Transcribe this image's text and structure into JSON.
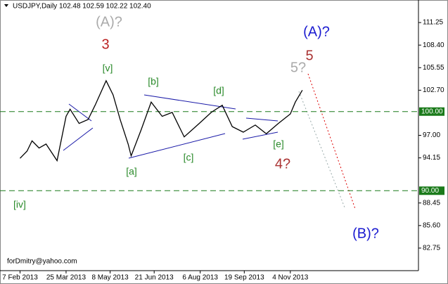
{
  "chart_data": {
    "type": "line",
    "title": "USDJPY,Daily  102.48 102.59 102.22 102.40",
    "watermark": "forDmitry@yahoo.com",
    "x": [
      "2013-02-07",
      "2013-02-14",
      "2013-02-19",
      "2013-02-26",
      "2013-03-05",
      "2013-03-16",
      "2013-03-25",
      "2013-03-29",
      "2013-04-07",
      "2013-04-16",
      "2013-04-23",
      "2013-05-04",
      "2013-05-11",
      "2013-05-18",
      "2013-05-26",
      "2013-05-29",
      "2013-06-08",
      "2013-06-18",
      "2013-06-29",
      "2013-07-09",
      "2013-07-21",
      "2013-08-05",
      "2013-08-17",
      "2013-08-28",
      "2013-09-07",
      "2013-09-18",
      "2013-09-30",
      "2013-10-11",
      "2013-10-23",
      "2013-11-04",
      "2013-11-09",
      "2013-11-16"
    ],
    "series": [
      {
        "name": "USDJPY",
        "color": "#000000",
        "values": [
          94.1,
          95.0,
          96.3,
          95.4,
          95.9,
          93.8,
          99.4,
          100.3,
          98.5,
          99.0,
          100.8,
          103.9,
          102.1,
          99.0,
          95.9,
          94.4,
          97.7,
          101.2,
          99.4,
          99.9,
          96.8,
          98.5,
          99.9,
          100.8,
          98.1,
          97.4,
          98.3,
          97.2,
          98.5,
          99.7,
          101.2,
          102.7
        ]
      }
    ],
    "xlim": [
      "2013-01-18",
      "2014-03-12"
    ],
    "xticks": [
      {
        "value": "2013-02-07",
        "label": "7 Feb 2013"
      },
      {
        "value": "2013-03-25",
        "label": "25 Mar 2013"
      },
      {
        "value": "2013-05-08",
        "label": "8 May 2013"
      },
      {
        "value": "2013-06-21",
        "label": "21 Jun 2013"
      },
      {
        "value": "2013-08-06",
        "label": "6 Aug 2013"
      },
      {
        "value": "2013-09-19",
        "label": "19 Sep 2013"
      },
      {
        "value": "2013-11-04",
        "label": "4 Nov 2013"
      }
    ],
    "ylim": [
      79.9,
      114.1
    ],
    "yticks": [
      111.25,
      {
        "value": 108.4,
        "label": "108.40"
      },
      105.55,
      {
        "value": 102.7,
        "label": "102.70"
      },
      {
        "value": 97,
        "label": "97.00"
      },
      94.15,
      88.45,
      {
        "value": 85.6,
        "label": "85.60"
      },
      82.75
    ],
    "levels": [
      {
        "value": 100,
        "label": "100.00"
      },
      {
        "value": 90,
        "label": "90.00"
      }
    ],
    "annotations": [
      "(A)?",
      "3",
      "[v]",
      "[b]",
      "[d]",
      "[a]",
      "[c]",
      "[e]",
      "4?",
      "5?",
      "5",
      "(A)?",
      "(B)?",
      "[iv]"
    ]
  }
}
